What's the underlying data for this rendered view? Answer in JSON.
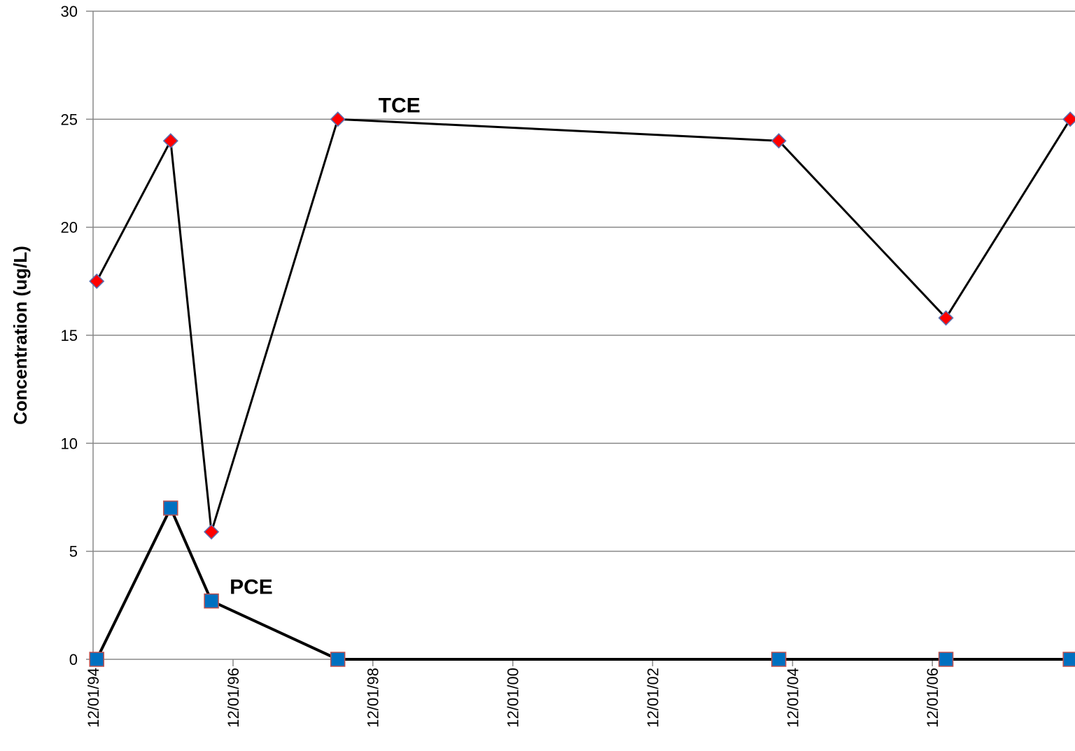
{
  "chart_data": {
    "type": "line",
    "title": "",
    "xlabel": "",
    "ylabel": "Concentration (ug/L)",
    "x_axis_type": "date",
    "xlim": [
      "1994-12-01",
      "2007-12-01"
    ],
    "x_ticks": [
      "12/01/94",
      "12/01/96",
      "12/01/98",
      "12/01/00",
      "12/01/02",
      "12/01/04",
      "12/01/06"
    ],
    "x_tick_dates": [
      "1994-12-01",
      "1996-12-01",
      "1998-12-01",
      "2000-12-01",
      "2002-12-01",
      "2004-12-01",
      "2006-12-01"
    ],
    "ylim": [
      0,
      30
    ],
    "y_ticks": [
      0,
      5,
      10,
      15,
      20,
      25,
      30
    ],
    "grid": {
      "horizontal": true,
      "vertical": false
    },
    "legend": "none",
    "series": [
      {
        "name": "TCE",
        "marker": "diamond",
        "marker_color": "#ff0000",
        "line_color": "#000000",
        "points": [
          {
            "x": "1994-12-20",
            "y": 17.5
          },
          {
            "x": "1996-01-10",
            "y": 24
          },
          {
            "x": "1996-08-10",
            "y": 5.9
          },
          {
            "x": "1998-06-01",
            "y": 25
          },
          {
            "x": "2004-09-20",
            "y": 24
          },
          {
            "x": "2007-02-10",
            "y": 15.8
          },
          {
            "x": "2008-11-20",
            "y": 25
          }
        ]
      },
      {
        "name": "PCE",
        "marker": "square",
        "marker_color": "#0070c0",
        "line_color": "#000000",
        "points": [
          {
            "x": "1994-12-20",
            "y": 0
          },
          {
            "x": "1996-01-10",
            "y": 7
          },
          {
            "x": "1996-08-10",
            "y": 2.7
          },
          {
            "x": "1998-06-01",
            "y": 0
          },
          {
            "x": "2004-09-20",
            "y": 0
          },
          {
            "x": "2007-02-10",
            "y": 0
          },
          {
            "x": "2008-11-20",
            "y": 0
          }
        ]
      }
    ]
  }
}
